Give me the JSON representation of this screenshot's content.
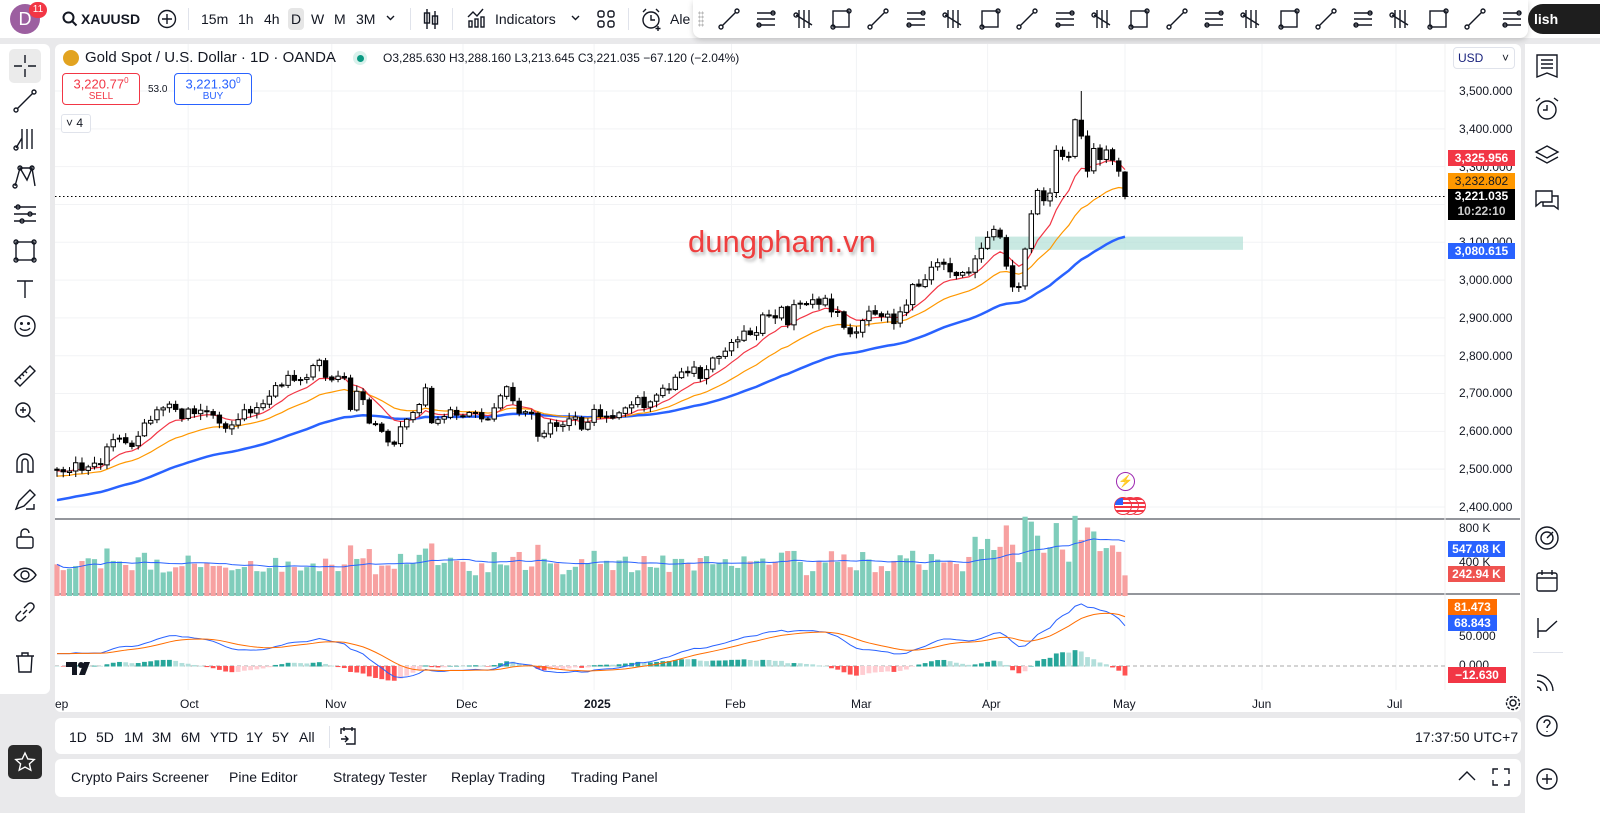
{
  "header": {
    "avatar_letter": "D",
    "notification_count": "11",
    "symbol": "XAUUSD",
    "intervals": [
      "15m",
      "1h",
      "4h",
      "D",
      "W",
      "M",
      "3M"
    ],
    "selected_interval": "D",
    "indicators_label": "Indicators",
    "alert_label": "Ale",
    "publish_label": "lish"
  },
  "drawing_toolbar": [
    "trend-line",
    "horizontal-ray",
    "parallel-channel",
    "regression-trend",
    "fib-grid",
    "fib-fan",
    "callout",
    "elliott-impulse",
    "abcd-pattern",
    "elliott-correction",
    "long-position",
    "date-range",
    "cycle-lines",
    "sine-line",
    "rectangle",
    "vertical-line",
    "parallel-lines",
    "fib-retracement",
    "fib-extension",
    "price-range",
    "arrow",
    "pitchfork"
  ],
  "legend": {
    "title": "Gold Spot / U.S. Dollar · 1D · OANDA",
    "ohlc": "O3,285.630 H3,288.160 L3,213.645 C3,221.035 −67.120 (−2.04%)",
    "sell_price": "3,220.77",
    "sell_sup": "0",
    "sell_label": "SELL",
    "spread": "53.0",
    "buy_price": "3,221.30",
    "buy_sup": "0",
    "buy_label": "BUY",
    "indicators_collapsed": "4"
  },
  "watermark": "dungpham.vn",
  "currency": "USD",
  "price_axis": [
    "3,500.000",
    "3,400.000",
    "3,300.000",
    "3,200.000",
    "3,100.000",
    "3,000.000",
    "2,900.000",
    "2,800.000",
    "2,700.000",
    "2,600.000",
    "2,500.000",
    "2,400.000"
  ],
  "price_labels": {
    "ema_fast": "3,325.956",
    "ema_mid": "3,232.802",
    "last_price": "3,221.035",
    "countdown": "10:22:10",
    "ma_slow": "3,080.615"
  },
  "volume_axis": [
    "800 K",
    "400 K"
  ],
  "volume_labels": {
    "ma": "547.08 K",
    "last": "242.94 K"
  },
  "macd_axis": [
    "50.000",
    "0.000"
  ],
  "macd_labels": {
    "signal": "81.473",
    "macd": "68.843",
    "hist": "−12.630"
  },
  "time_axis": [
    "ep",
    "Oct",
    "Nov",
    "Dec",
    "2025",
    "Feb",
    "Mar",
    "Apr",
    "May",
    "Jun",
    "Jul"
  ],
  "range_buttons": [
    "1D",
    "5D",
    "1M",
    "3M",
    "6M",
    "YTD",
    "1Y",
    "5Y",
    "All"
  ],
  "clock": "17:37:50 UTC+7",
  "bottom_tabs": [
    "Crypto Pairs Screener",
    "Pine Editor",
    "Strategy Tester",
    "Replay Trading",
    "Trading Panel"
  ],
  "colors": {
    "up": "#ffffff",
    "down": "#000000",
    "ema_fast": "#f23645",
    "ema_mid": "#ff9800",
    "ma_slow": "#2962ff",
    "vol_up": "#7fcdbb",
    "vol_down": "#f7a1a1",
    "zone": "#b2dfd6"
  },
  "chart_data": {
    "type": "candlestick",
    "symbol": "XAUUSD",
    "ylim": [
      2400,
      3500
    ],
    "month_start_index": {
      "Oct": 21,
      "Nov": 44,
      "Dec": 65,
      "2025": 86,
      "Feb": 108,
      "Mar": 128,
      "Apr": 149,
      "May": 171
    },
    "first_open": 2500,
    "last_candle": {
      "open": 3285.63,
      "high": 3288.16,
      "low": 3213.645,
      "close": 3221.035
    },
    "period_high": 3500,
    "zone": [
      3080,
      3115
    ],
    "closes": [
      2497,
      2493,
      2495,
      2517,
      2497,
      2506,
      2516,
      2512,
      2559,
      2578,
      2582,
      2570,
      2560,
      2587,
      2622,
      2629,
      2657,
      2662,
      2672,
      2658,
      2634,
      2659,
      2647,
      2656,
      2653,
      2643,
      2622,
      2608,
      2617,
      2631,
      2657,
      2649,
      2663,
      2673,
      2693,
      2721,
      2720,
      2748,
      2735,
      2737,
      2742,
      2774,
      2788,
      2743,
      2736,
      2746,
      2741,
      2658,
      2706,
      2684,
      2622,
      2618,
      2600,
      2572,
      2566,
      2612,
      2632,
      2650,
      2671,
      2715,
      2623,
      2631,
      2639,
      2657,
      2643,
      2640,
      2650,
      2650,
      2633,
      2633,
      2662,
      2694,
      2718,
      2681,
      2648,
      2652,
      2647,
      2587,
      2595,
      2622,
      2613,
      2617,
      2633,
      2638,
      2606,
      2624,
      2658,
      2639,
      2640,
      2635,
      2649,
      2662,
      2670,
      2689,
      2663,
      2678,
      2696,
      2714,
      2711,
      2743,
      2757,
      2755,
      2770,
      2740,
      2763,
      2794,
      2798,
      2812,
      2835,
      2842,
      2865,
      2856,
      2861,
      2908,
      2906,
      2900,
      2928,
      2882,
      2935,
      2939,
      2935,
      2948,
      2936,
      2952,
      2916,
      2917,
      2875,
      2858,
      2863,
      2893,
      2918,
      2910,
      2904,
      2910,
      2885,
      2916,
      2934,
      2988,
      2984,
      3001,
      3034,
      3046,
      3042,
      3022,
      3012,
      3020,
      3019,
      3056,
      3084,
      3113,
      3134,
      3114,
      3037,
      2982,
      2983,
      3082,
      3175,
      3237,
      3210,
      3230,
      3343,
      3327,
      3327,
      3424,
      3381,
      3288,
      3348,
      3319,
      3344,
      3317,
      3288,
      3221.035
    ]
  }
}
